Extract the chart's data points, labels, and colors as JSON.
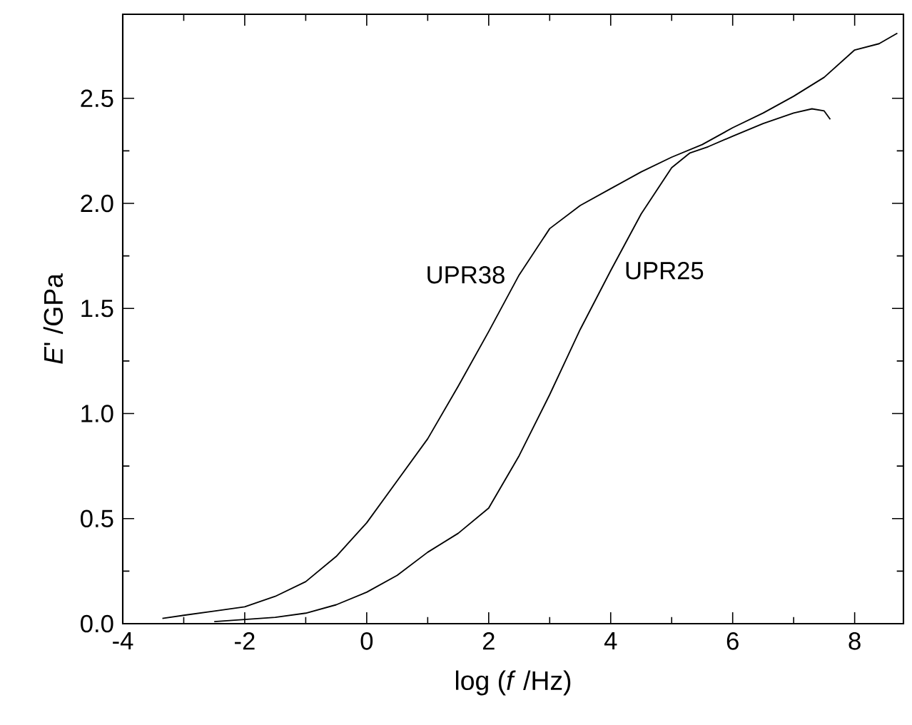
{
  "chart_data": {
    "type": "line",
    "xlabel": "log (*f* /Hz)",
    "ylabel": "*E*' /GPa",
    "xlim": [
      -4,
      8.8
    ],
    "ylim": [
      0,
      2.9
    ],
    "xticks": [
      -4,
      -2,
      0,
      2,
      4,
      6,
      8
    ],
    "yticks": [
      {
        "value": 0,
        "label": "0.0"
      },
      0.5,
      {
        "value": 1,
        "label": "1.0"
      },
      1.5,
      {
        "value": 2,
        "label": "2.0"
      },
      2.5
    ],
    "marker": "none",
    "line_style": "solid",
    "series": [
      {
        "name": "UPR38",
        "color": "#000000",
        "x": [
          -3.35,
          -3,
          -2.5,
          -2,
          -1.5,
          -1,
          -0.5,
          0,
          0.5,
          1,
          1.5,
          2,
          2.5,
          3,
          3.5,
          4,
          4.5,
          5,
          5.5,
          6,
          6.5,
          7,
          7.5,
          8,
          8.4,
          8.7
        ],
        "values": [
          0.025,
          0.04,
          0.06,
          0.08,
          0.13,
          0.2,
          0.32,
          0.48,
          0.68,
          0.88,
          1.13,
          1.39,
          1.66,
          1.88,
          1.99,
          2.07,
          2.15,
          2.22,
          2.28,
          2.36,
          2.43,
          2.51,
          2.6,
          2.73,
          2.76,
          2.81
        ]
      },
      {
        "name": "UPR25",
        "color": "#000000",
        "x": [
          -2.5,
          -2,
          -1.5,
          -1,
          -0.5,
          0,
          0.5,
          1,
          1.5,
          2,
          2.5,
          3,
          3.5,
          4,
          4.5,
          5,
          5.3,
          5.6,
          6,
          6.5,
          7,
          7.3,
          7.5,
          7.6
        ],
        "values": [
          0.01,
          0.02,
          0.03,
          0.05,
          0.09,
          0.15,
          0.23,
          0.34,
          0.43,
          0.55,
          0.8,
          1.09,
          1.4,
          1.68,
          1.95,
          2.17,
          2.24,
          2.27,
          2.32,
          2.38,
          2.43,
          2.45,
          2.44,
          2.4
        ]
      }
    ]
  }
}
